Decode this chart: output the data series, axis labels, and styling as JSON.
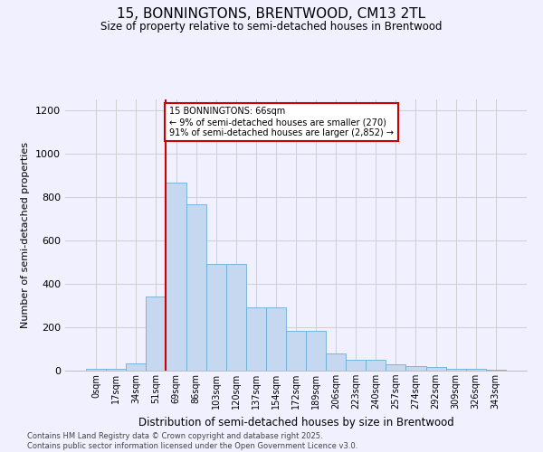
{
  "title": "15, BONNINGTONS, BRENTWOOD, CM13 2TL",
  "subtitle": "Size of property relative to semi-detached houses in Brentwood",
  "xlabel": "Distribution of semi-detached houses by size in Brentwood",
  "ylabel": "Number of semi-detached properties",
  "categories": [
    "0sqm",
    "17sqm",
    "34sqm",
    "51sqm",
    "69sqm",
    "86sqm",
    "103sqm",
    "120sqm",
    "137sqm",
    "154sqm",
    "172sqm",
    "189sqm",
    "206sqm",
    "223sqm",
    "240sqm",
    "257sqm",
    "274sqm",
    "292sqm",
    "309sqm",
    "326sqm",
    "343sqm"
  ],
  "bar_heights": [
    8,
    8,
    32,
    343,
    865,
    768,
    490,
    490,
    290,
    290,
    183,
    183,
    80,
    48,
    48,
    30,
    20,
    15,
    10,
    8,
    5
  ],
  "bar_color": "#c5d8f0",
  "bar_edge_color": "#6baed6",
  "vline_color": "#cc0000",
  "annotation_text": "15 BONNINGTONS: 66sqm\n← 9% of semi-detached houses are smaller (270)\n91% of semi-detached houses are larger (2,852) →",
  "annotation_box_color": "white",
  "annotation_box_edge": "#cc0000",
  "ylim": [
    0,
    1250
  ],
  "yticks": [
    0,
    200,
    400,
    600,
    800,
    1000,
    1200
  ],
  "footer": "Contains HM Land Registry data © Crown copyright and database right 2025.\nContains public sector information licensed under the Open Government Licence v3.0.",
  "bg_color": "#f0f0ff",
  "grid_color": "#d0d0d0",
  "vline_index": 3.5
}
